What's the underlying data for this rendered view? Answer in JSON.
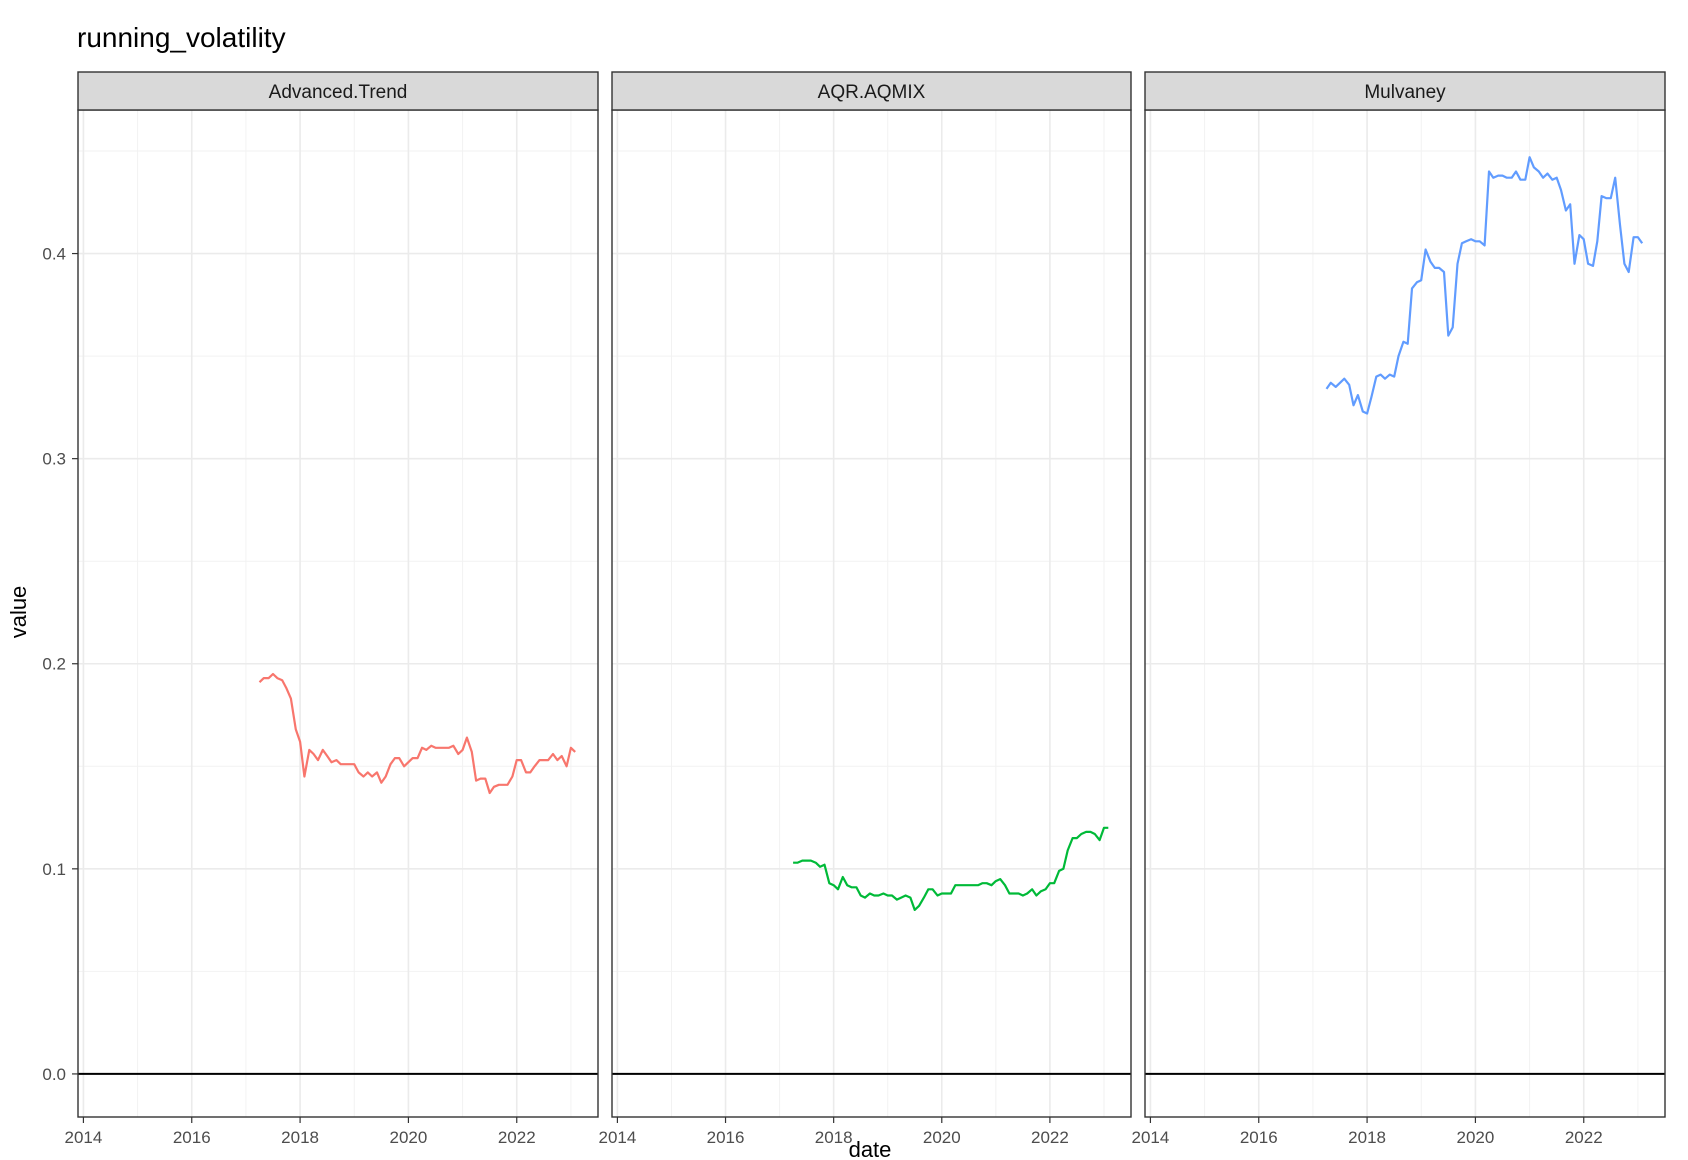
{
  "chart_data": {
    "type": "line",
    "title": "running_volatility",
    "xlabel": "date",
    "ylabel": "value",
    "xlim": [
      2013.9,
      2023.5
    ],
    "ylim": [
      -0.021,
      0.47
    ],
    "x_ticks": [
      2014,
      2016,
      2018,
      2020,
      2022
    ],
    "x_tick_labels": [
      "2014",
      "2016",
      "2018",
      "2020",
      "2022"
    ],
    "y_ticks": [
      0.0,
      0.1,
      0.2,
      0.3,
      0.4
    ],
    "y_tick_labels": [
      "0.0",
      "0.1",
      "0.2",
      "0.3",
      "0.4"
    ],
    "hline": 0,
    "grid": true,
    "facets": [
      "Advanced.Trend",
      "AQR.AQMIX",
      "Mulvaney"
    ],
    "series": [
      {
        "facet": "Advanced.Trend",
        "color": "#F8766D",
        "x": [
          2017.25,
          2017.33,
          2017.42,
          2017.5,
          2017.58,
          2017.67,
          2017.75,
          2017.83,
          2017.92,
          2018.0,
          2018.08,
          2018.17,
          2018.25,
          2018.33,
          2018.42,
          2018.5,
          2018.58,
          2018.67,
          2018.75,
          2018.83,
          2018.92,
          2019.0,
          2019.08,
          2019.17,
          2019.25,
          2019.33,
          2019.42,
          2019.5,
          2019.58,
          2019.67,
          2019.75,
          2019.83,
          2019.92,
          2020.0,
          2020.08,
          2020.17,
          2020.25,
          2020.33,
          2020.42,
          2020.5,
          2020.58,
          2020.67,
          2020.75,
          2020.83,
          2020.92,
          2021.0,
          2021.08,
          2021.17,
          2021.25,
          2021.33,
          2021.42,
          2021.5,
          2021.58,
          2021.67,
          2021.75,
          2021.83,
          2021.92,
          2022.0,
          2022.08,
          2022.17,
          2022.25,
          2022.33,
          2022.42,
          2022.5,
          2022.58,
          2022.67,
          2022.75,
          2022.83,
          2022.92,
          2023.0,
          2023.08
        ],
        "values": [
          0.191,
          0.193,
          0.193,
          0.195,
          0.193,
          0.192,
          0.188,
          0.183,
          0.168,
          0.162,
          0.145,
          0.158,
          0.156,
          0.153,
          0.158,
          0.155,
          0.152,
          0.153,
          0.151,
          0.151,
          0.151,
          0.151,
          0.147,
          0.145,
          0.147,
          0.145,
          0.147,
          0.142,
          0.145,
          0.151,
          0.154,
          0.154,
          0.15,
          0.152,
          0.154,
          0.154,
          0.159,
          0.158,
          0.16,
          0.159,
          0.159,
          0.159,
          0.159,
          0.16,
          0.156,
          0.158,
          0.164,
          0.157,
          0.143,
          0.144,
          0.144,
          0.137,
          0.14,
          0.141,
          0.141,
          0.141,
          0.145,
          0.153,
          0.153,
          0.147,
          0.147,
          0.15,
          0.153,
          0.153,
          0.153,
          0.156,
          0.153,
          0.155,
          0.15,
          0.159,
          0.157
        ]
      },
      {
        "facet": "AQR.AQMIX",
        "color": "#00BA38",
        "x": [
          2017.25,
          2017.33,
          2017.42,
          2017.5,
          2017.58,
          2017.67,
          2017.75,
          2017.83,
          2017.92,
          2018.0,
          2018.08,
          2018.17,
          2018.25,
          2018.33,
          2018.42,
          2018.5,
          2018.58,
          2018.67,
          2018.75,
          2018.83,
          2018.92,
          2019.0,
          2019.08,
          2019.17,
          2019.25,
          2019.33,
          2019.42,
          2019.5,
          2019.58,
          2019.67,
          2019.75,
          2019.83,
          2019.92,
          2020.0,
          2020.08,
          2020.17,
          2020.25,
          2020.33,
          2020.42,
          2020.5,
          2020.58,
          2020.67,
          2020.75,
          2020.83,
          2020.92,
          2021.0,
          2021.08,
          2021.17,
          2021.25,
          2021.33,
          2021.42,
          2021.5,
          2021.58,
          2021.67,
          2021.75,
          2021.83,
          2021.92,
          2022.0,
          2022.08,
          2022.17,
          2022.25,
          2022.33,
          2022.42,
          2022.5,
          2022.58,
          2022.67,
          2022.75,
          2022.83,
          2022.92,
          2023.0,
          2023.08
        ],
        "values": [
          0.103,
          0.103,
          0.104,
          0.104,
          0.104,
          0.103,
          0.101,
          0.102,
          0.093,
          0.092,
          0.09,
          0.096,
          0.092,
          0.091,
          0.091,
          0.087,
          0.086,
          0.088,
          0.087,
          0.087,
          0.088,
          0.087,
          0.087,
          0.085,
          0.086,
          0.087,
          0.086,
          0.08,
          0.082,
          0.086,
          0.09,
          0.09,
          0.087,
          0.088,
          0.088,
          0.088,
          0.092,
          0.092,
          0.092,
          0.092,
          0.092,
          0.092,
          0.093,
          0.093,
          0.092,
          0.094,
          0.095,
          0.092,
          0.088,
          0.088,
          0.088,
          0.087,
          0.088,
          0.09,
          0.087,
          0.089,
          0.09,
          0.093,
          0.093,
          0.099,
          0.1,
          0.109,
          0.115,
          0.115,
          0.117,
          0.118,
          0.118,
          0.117,
          0.114,
          0.12,
          0.12
        ]
      },
      {
        "facet": "Mulvaney",
        "color": "#619CFF",
        "x": [
          2017.25,
          2017.33,
          2017.42,
          2017.5,
          2017.58,
          2017.67,
          2017.75,
          2017.83,
          2017.92,
          2018.0,
          2018.08,
          2018.17,
          2018.25,
          2018.33,
          2018.42,
          2018.5,
          2018.58,
          2018.67,
          2018.75,
          2018.83,
          2018.92,
          2019.0,
          2019.08,
          2019.17,
          2019.25,
          2019.33,
          2019.42,
          2019.5,
          2019.58,
          2019.67,
          2019.75,
          2019.83,
          2019.92,
          2020.0,
          2020.08,
          2020.17,
          2020.25,
          2020.33,
          2020.42,
          2020.5,
          2020.58,
          2020.67,
          2020.75,
          2020.83,
          2020.92,
          2021.0,
          2021.08,
          2021.17,
          2021.25,
          2021.33,
          2021.42,
          2021.5,
          2021.58,
          2021.67,
          2021.75,
          2021.83,
          2021.92,
          2022.0,
          2022.08,
          2022.17,
          2022.25,
          2022.33,
          2022.42,
          2022.5,
          2022.58,
          2022.67,
          2022.75,
          2022.83,
          2022.92,
          2023.0,
          2023.08
        ],
        "values": [
          0.334,
          0.337,
          0.335,
          0.337,
          0.339,
          0.336,
          0.326,
          0.331,
          0.323,
          0.322,
          0.33,
          0.34,
          0.341,
          0.339,
          0.341,
          0.34,
          0.35,
          0.357,
          0.356,
          0.383,
          0.386,
          0.387,
          0.402,
          0.396,
          0.393,
          0.393,
          0.391,
          0.36,
          0.364,
          0.395,
          0.405,
          0.406,
          0.407,
          0.406,
          0.406,
          0.404,
          0.44,
          0.437,
          0.438,
          0.438,
          0.437,
          0.437,
          0.44,
          0.436,
          0.436,
          0.447,
          0.442,
          0.44,
          0.437,
          0.439,
          0.436,
          0.437,
          0.431,
          0.421,
          0.424,
          0.395,
          0.409,
          0.407,
          0.395,
          0.394,
          0.406,
          0.428,
          0.427,
          0.427,
          0.437,
          0.414,
          0.395,
          0.391,
          0.408,
          0.408,
          0.405
        ]
      }
    ]
  }
}
